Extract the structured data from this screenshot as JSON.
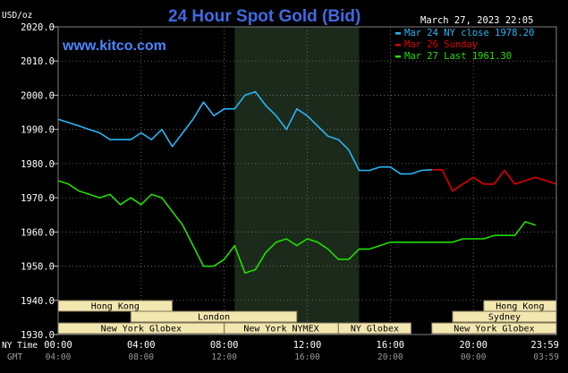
{
  "chart_data": {
    "type": "line",
    "title": "24 Hour Spot Gold (Bid)",
    "source": "www.kitco.com",
    "timestamp": "March 27, 2023 22:05",
    "y_unit_label": "USD/oz",
    "ylim": [
      1930,
      2020
    ],
    "y_ticks": [
      "2020.0",
      "2010.0",
      "2000.0",
      "1990.0",
      "1980.0",
      "1970.0",
      "1960.0",
      "1950.0",
      "1940.0",
      "1930.0"
    ],
    "x_range_hours": [
      0,
      24
    ],
    "x_ticks_ny": [
      "00:00",
      "04:00",
      "08:00",
      "12:00",
      "16:00",
      "20:00",
      "23:59"
    ],
    "x_ticks_gmt": [
      "04:00",
      "08:00",
      "12:00",
      "16:00",
      "20:00",
      "00:00",
      "03:59"
    ],
    "x_row_labels": {
      "ny": "NY Time",
      "gmt": "GMT"
    },
    "grid": true,
    "legend_position": "top-right",
    "highlight_region_hours": [
      8.5,
      14.5
    ],
    "series": [
      {
        "name": "Mar 24 NY close 1978.20",
        "color": "#29b6f6",
        "x": [
          0,
          0.5,
          1,
          1.5,
          2,
          2.5,
          3,
          3.5,
          4,
          4.5,
          5,
          5.5,
          6,
          6.5,
          7,
          7.5,
          8,
          8.5,
          9,
          9.5,
          10,
          10.5,
          11,
          11.5,
          12,
          12.5,
          13,
          13.5,
          14,
          14.5,
          15,
          15.5,
          16,
          16.5,
          17,
          17.5,
          18
        ],
        "y": [
          1993,
          1992,
          1991,
          1990,
          1989,
          1987,
          1987,
          1987,
          1989,
          1987,
          1990,
          1985,
          1989,
          1993,
          1998,
          1994,
          1996,
          1996,
          2000,
          2001,
          1997,
          1994,
          1990,
          1996,
          1994,
          1991,
          1988,
          1987,
          1984,
          1978,
          1978,
          1979,
          1979,
          1977,
          1977,
          1978,
          1978.2
        ]
      },
      {
        "name": "Mar 26 Sunday",
        "color": "#e00000",
        "x": [
          18,
          18.5,
          19,
          19.5,
          20,
          20.5,
          21,
          21.5,
          22,
          22.5,
          23,
          23.5,
          24
        ],
        "y": [
          1978.2,
          1978.2,
          1972,
          1974,
          1976,
          1974,
          1974,
          1978,
          1974,
          1975,
          1976,
          1975,
          1974
        ]
      },
      {
        "name": "Mar 27 Last 1961.30",
        "color": "#22e000",
        "x": [
          0,
          0.5,
          1,
          1.5,
          2,
          2.5,
          3,
          3.5,
          4,
          4.5,
          5,
          5.5,
          6,
          6.5,
          7,
          7.5,
          8,
          8.5,
          9,
          9.5,
          10,
          10.5,
          11,
          11.5,
          12,
          12.5,
          13,
          13.5,
          14,
          14.5,
          15,
          15.5,
          16,
          16.5,
          17,
          17.5,
          18,
          18.5,
          19,
          19.5,
          20,
          20.5,
          21,
          21.5,
          22,
          22.5,
          23
        ],
        "y": [
          1975,
          1974,
          1972,
          1971,
          1970,
          1971,
          1968,
          1970,
          1968,
          1971,
          1970,
          1966,
          1962,
          1956,
          1950,
          1950,
          1952,
          1956,
          1948,
          1949,
          1954,
          1957,
          1958,
          1956,
          1958,
          1957,
          1955,
          1952,
          1952,
          1955,
          1955,
          1956,
          1957,
          1957,
          1957,
          1957,
          1957,
          1957,
          1957,
          1958,
          1958,
          1958,
          1959,
          1959,
          1959,
          1963,
          1962
        ]
      }
    ],
    "sessions": [
      {
        "label": "Hong Kong",
        "start": 0,
        "end": 5.5,
        "row": 1
      },
      {
        "label": "London",
        "start": 3.5,
        "end": 11.5,
        "row": 2
      },
      {
        "label": "New York Globex",
        "start": 0,
        "end": 8,
        "row": 3
      },
      {
        "label": "New York NYMEX",
        "start": 8,
        "end": 13.5,
        "row": 3
      },
      {
        "label": "NY Globex",
        "start": 13.5,
        "end": 17,
        "row": 3
      },
      {
        "label": "Hong Kong",
        "start": 20.5,
        "end": 24,
        "row": 1
      },
      {
        "label": "Sydney",
        "start": 19,
        "end": 24,
        "row": 2
      },
      {
        "label": "New York Globex",
        "start": 18,
        "end": 24,
        "row": 3
      }
    ]
  }
}
